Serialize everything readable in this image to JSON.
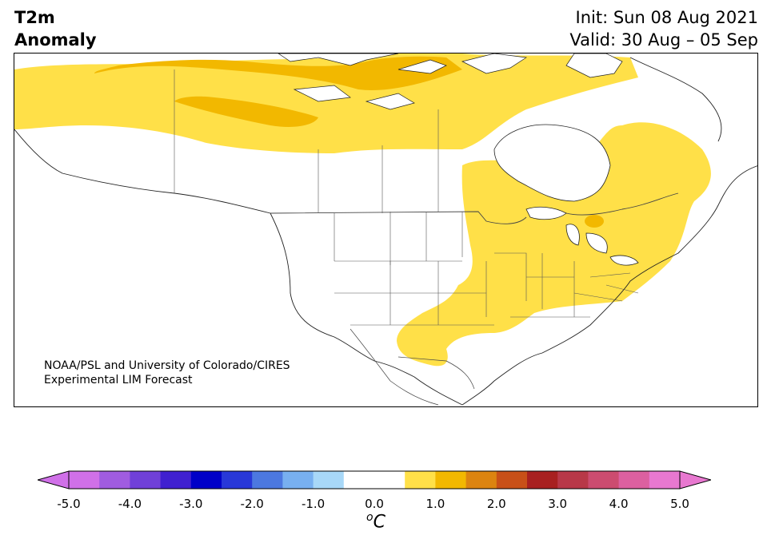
{
  "title": {
    "line1": "T2m",
    "line2": "Anomaly",
    "init": "Init: Sun 08 Aug 2021",
    "valid": "Valid: 30 Aug – 05 Sep"
  },
  "credit": {
    "line1": "NOAA/PSL and University of Colorado/CIRES",
    "line2": "Experimental LIM Forecast"
  },
  "colorbar": {
    "ticks": [
      "-5.0",
      "-4.0",
      "-3.0",
      "-2.0",
      "-1.0",
      "0.0",
      "1.0",
      "2.0",
      "3.0",
      "4.0",
      "5.0"
    ],
    "unit_o": "o",
    "unit_c": "C",
    "min": -5.0,
    "max": 5.0,
    "step": 0.5,
    "colors": [
      "#d070e8",
      "#a05ce0",
      "#7040d8",
      "#4020d0",
      "#0000c8",
      "#2838d8",
      "#4c78e0",
      "#78b0f0",
      "#a8d8f8",
      "#ffffff",
      "#ffffff",
      "#ffe048",
      "#f2b800",
      "#dc8410",
      "#c85018",
      "#a82020",
      "#b83848",
      "#cc4c70",
      "#dc60a0",
      "#e878d0"
    ],
    "under_color": "#d070e8",
    "over_color": "#e878d0"
  },
  "legend_colors": {
    "light_yellow": "#ffe048",
    "gold": "#f2b800",
    "border": "#444444",
    "coast": "#222222"
  }
}
